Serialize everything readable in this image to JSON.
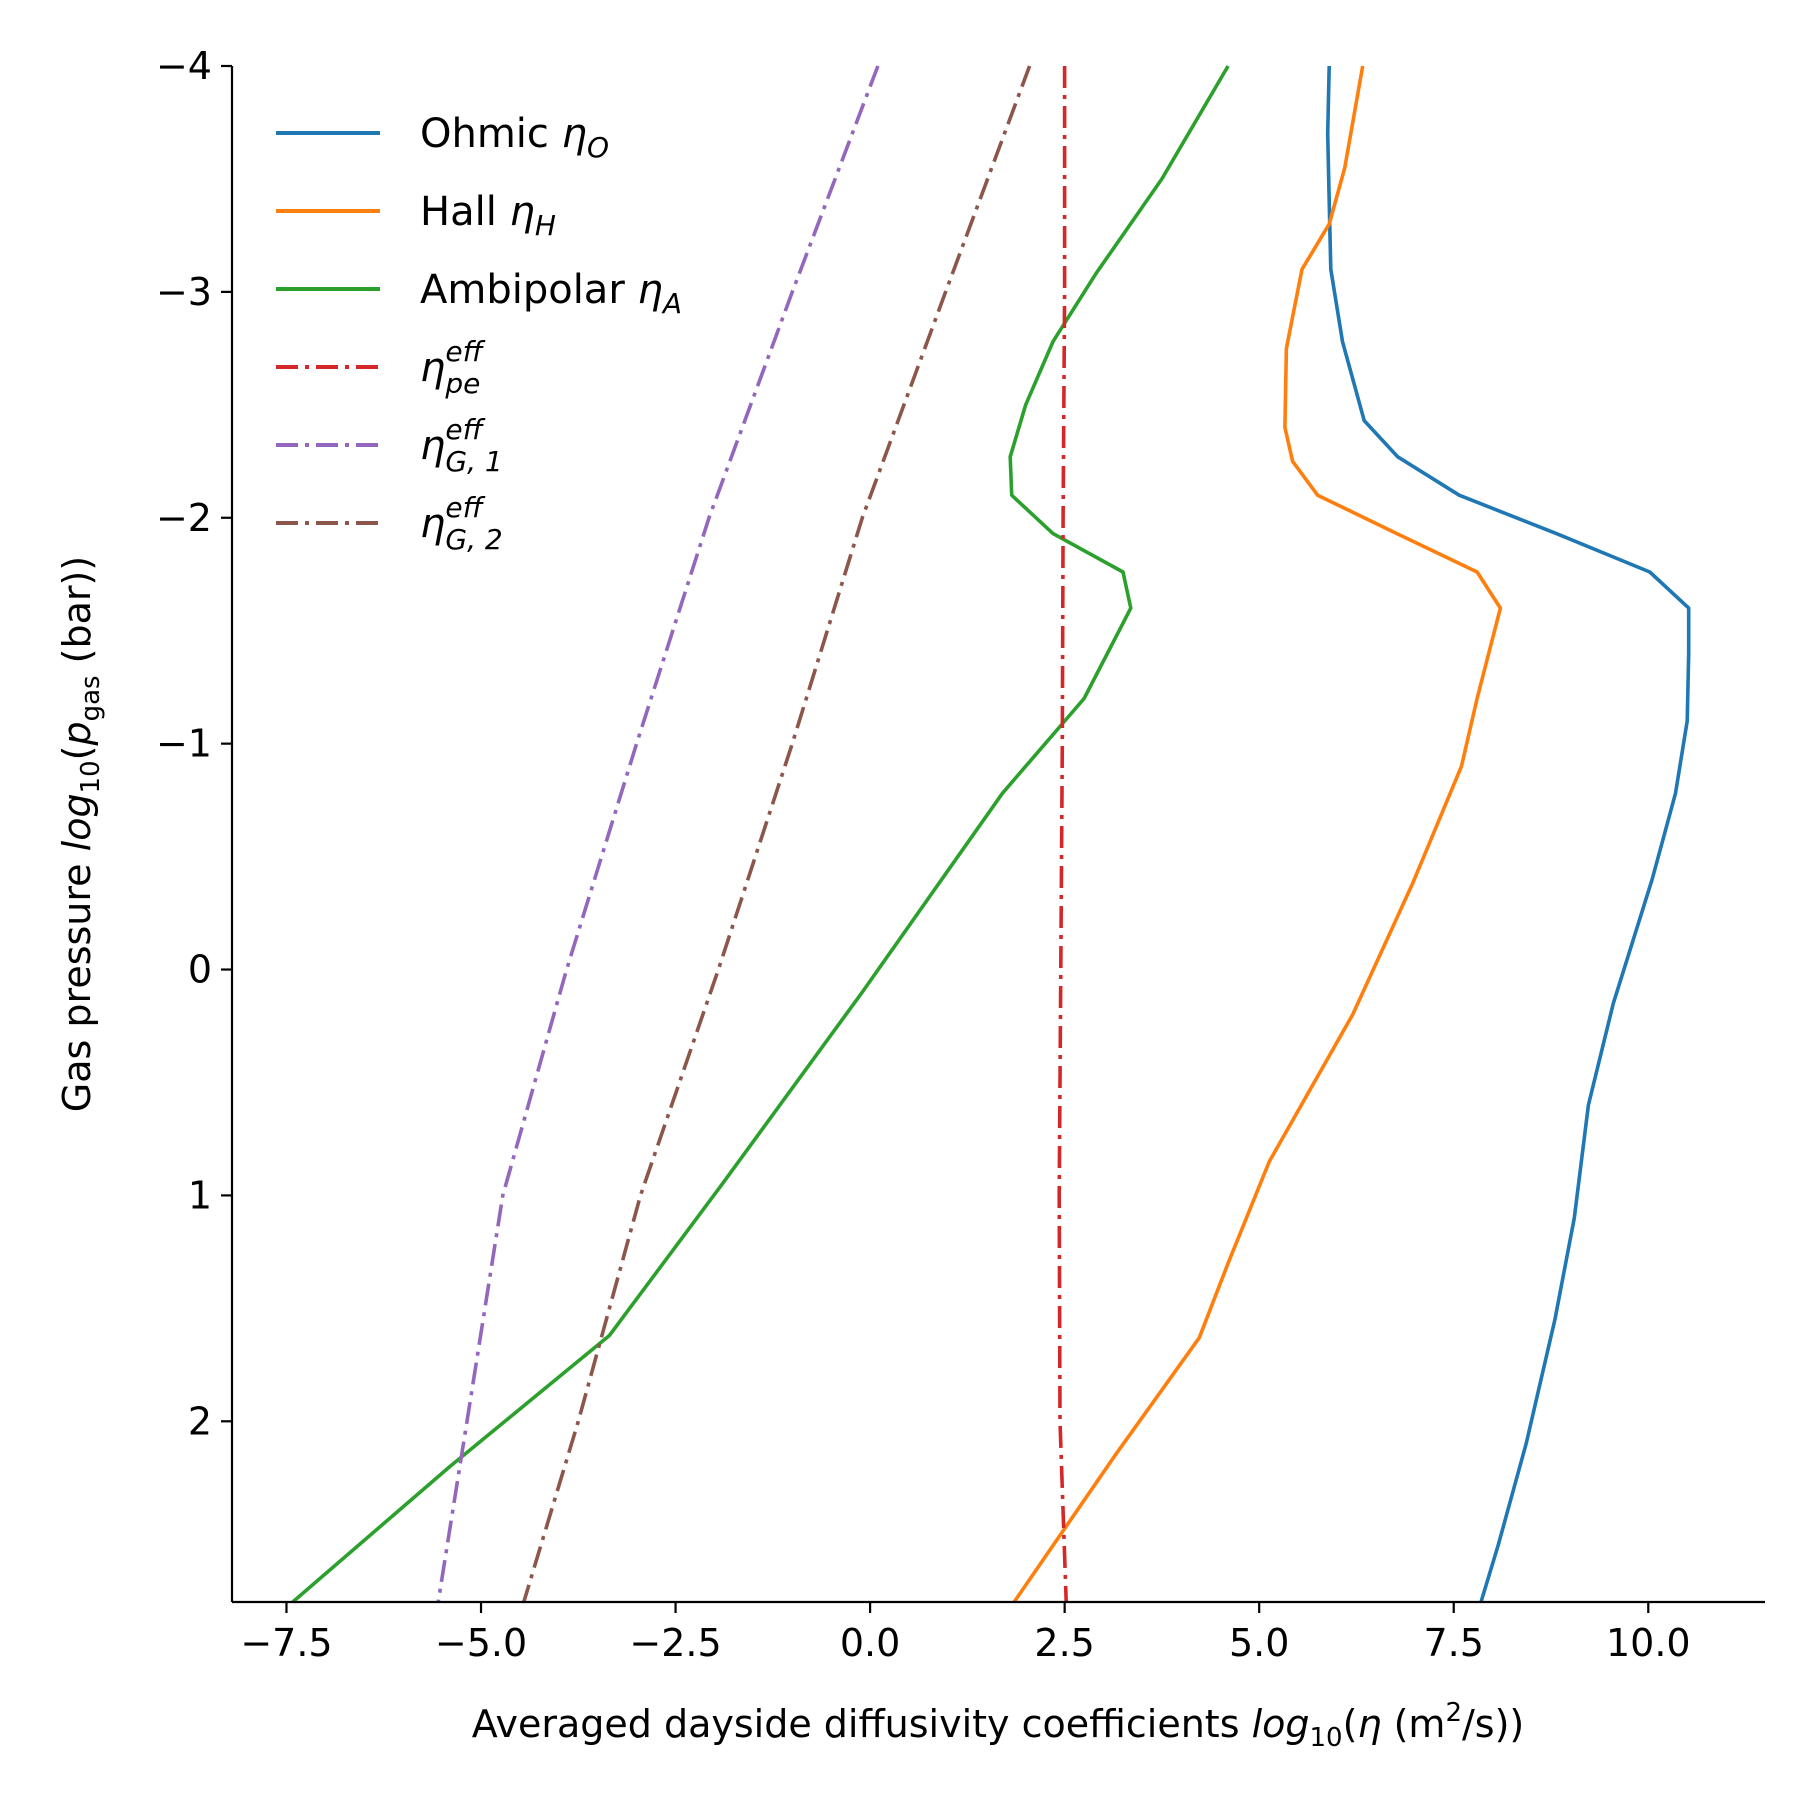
{
  "chart_data": {
    "type": "line",
    "title": "",
    "xlabel": {
      "prefix": "Averaged dayside diffusivity coefficients ",
      "func": "log",
      "func_sub": "10",
      "open": "(",
      "var": "η",
      "unit_open": " (m",
      "unit_sup": "2",
      "unit_close": "/s))"
    },
    "ylabel": {
      "prefix": "Gas pressure ",
      "func": "log",
      "func_sub": "10",
      "open": "(",
      "var": "p",
      "var_sub": "gas",
      "close": " (bar))"
    },
    "xlim": [
      -8.2,
      11.5
    ],
    "ylim": [
      2.8,
      -4
    ],
    "y_inverted": true,
    "x_ticks": [
      -7.5,
      -5.0,
      -2.5,
      0.0,
      2.5,
      5.0,
      7.5,
      10.0
    ],
    "x_tick_labels": [
      "−7.5",
      "−5.0",
      "−2.5",
      "0.0",
      "2.5",
      "5.0",
      "7.5",
      "10.0"
    ],
    "y_ticks": [
      -4,
      -3,
      -2,
      -1,
      0,
      1,
      2
    ],
    "y_tick_labels": [
      "−4",
      "−3",
      "−2",
      "−1",
      "0",
      "1",
      "2"
    ],
    "legend_position": "top-left",
    "series": [
      {
        "name": "Ohmic ηO",
        "label_base": "Ohmic ",
        "symbol": "η",
        "sub": "O",
        "sup": "",
        "color": "#1f77b4",
        "dash": "solid",
        "points": [
          [
            5.9,
            -4
          ],
          [
            5.88,
            -3.7
          ],
          [
            5.9,
            -3.4
          ],
          [
            5.92,
            -3.1
          ],
          [
            6.07,
            -2.78
          ],
          [
            6.35,
            -2.43
          ],
          [
            6.78,
            -2.27
          ],
          [
            7.57,
            -2.1
          ],
          [
            8.82,
            -1.93
          ],
          [
            10.02,
            -1.76
          ],
          [
            10.52,
            -1.6
          ],
          [
            10.52,
            -1.4
          ],
          [
            10.5,
            -1.1
          ],
          [
            10.35,
            -0.78
          ],
          [
            10.05,
            -0.4
          ],
          [
            9.55,
            0.15
          ],
          [
            9.23,
            0.6
          ],
          [
            9.05,
            1.1
          ],
          [
            8.8,
            1.55
          ],
          [
            8.43,
            2.1
          ],
          [
            8.07,
            2.55
          ],
          [
            7.85,
            2.8
          ]
        ]
      },
      {
        "name": "Hall ηH",
        "label_base": "Hall ",
        "symbol": "η",
        "sub": "H",
        "sup": "",
        "color": "#ff7f0e",
        "dash": "solid",
        "points": [
          [
            6.33,
            -4
          ],
          [
            6.1,
            -3.55
          ],
          [
            5.9,
            -3.3
          ],
          [
            5.55,
            -3.1
          ],
          [
            5.35,
            -2.75
          ],
          [
            5.33,
            -2.4
          ],
          [
            5.43,
            -2.25
          ],
          [
            5.75,
            -2.1
          ],
          [
            6.77,
            -1.93
          ],
          [
            7.8,
            -1.76
          ],
          [
            8.1,
            -1.6
          ],
          [
            7.8,
            -1.2
          ],
          [
            7.6,
            -0.9
          ],
          [
            6.97,
            -0.38
          ],
          [
            6.2,
            0.2
          ],
          [
            5.13,
            0.85
          ],
          [
            4.6,
            1.3
          ],
          [
            4.23,
            1.63
          ],
          [
            3.15,
            2.15
          ],
          [
            2.35,
            2.55
          ],
          [
            1.85,
            2.8
          ]
        ]
      },
      {
        "name": "Ambipolar ηA",
        "label_base": "Ambipolar ",
        "symbol": "η",
        "sub": "A",
        "sup": "",
        "color": "#2ca02c",
        "dash": "solid",
        "points": [
          [
            4.6,
            -4
          ],
          [
            3.75,
            -3.5
          ],
          [
            2.9,
            -3.08
          ],
          [
            2.35,
            -2.78
          ],
          [
            2.0,
            -2.5
          ],
          [
            1.8,
            -2.27
          ],
          [
            1.82,
            -2.1
          ],
          [
            2.35,
            -1.93
          ],
          [
            3.25,
            -1.76
          ],
          [
            3.35,
            -1.6
          ],
          [
            2.75,
            -1.2
          ],
          [
            1.7,
            -0.78
          ],
          [
            -0.1,
            0.1
          ],
          [
            -1.9,
            0.95
          ],
          [
            -3.35,
            1.62
          ],
          [
            -5.4,
            2.2
          ],
          [
            -7.42,
            2.8
          ]
        ]
      },
      {
        "name": "η_pe^eff",
        "label_base": "",
        "symbol": "η",
        "sub": "pe",
        "sup": "eff",
        "color": "#d62728",
        "dash": "dashdot",
        "points": [
          [
            2.5,
            -4
          ],
          [
            2.5,
            -3
          ],
          [
            2.48,
            -2
          ],
          [
            2.47,
            -1
          ],
          [
            2.45,
            0
          ],
          [
            2.43,
            1
          ],
          [
            2.44,
            2
          ],
          [
            2.52,
            2.8
          ]
        ]
      },
      {
        "name": "η_G,1^eff",
        "label_base": "",
        "symbol": "η",
        "sub": "G, 1",
        "sup": "eff",
        "color": "#9467bd",
        "dash": "dashdot",
        "points": [
          [
            0.1,
            -4
          ],
          [
            -1.0,
            -3.0
          ],
          [
            -2.07,
            -2.0
          ],
          [
            -3.0,
            -1.0
          ],
          [
            -3.9,
            0.0
          ],
          [
            -4.72,
            1.0
          ],
          [
            -5.18,
            2.0
          ],
          [
            -5.55,
            2.8
          ]
        ]
      },
      {
        "name": "η_G,2^eff",
        "label_base": "",
        "symbol": "η",
        "sub": "G, 2",
        "sup": "eff",
        "color": "#8c564b",
        "dash": "dashdot",
        "points": [
          [
            2.05,
            -4
          ],
          [
            0.97,
            -3.0
          ],
          [
            -0.1,
            -2.0
          ],
          [
            -1.0,
            -1.0
          ],
          [
            -1.95,
            0.0
          ],
          [
            -2.95,
            1.0
          ],
          [
            -3.75,
            2.0
          ],
          [
            -4.45,
            2.8
          ]
        ]
      }
    ]
  }
}
